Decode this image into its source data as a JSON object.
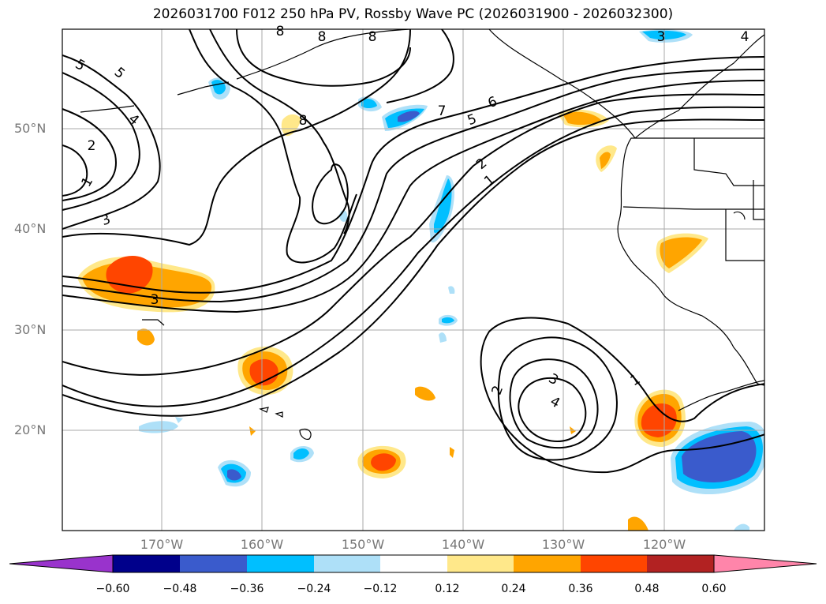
{
  "title": "2026031700 F012 250 hPa PV, Rossby Wave PC (2026031900 - 2026032300)",
  "axes": {
    "lat_labels": [
      "50°N",
      "40°N",
      "30°N",
      "20°N"
    ],
    "lon_labels": [
      "170°W",
      "160°W",
      "150°W",
      "140°W",
      "130°W",
      "120°W"
    ]
  },
  "colorbar": {
    "ticks": [
      "−0.60",
      "−0.48",
      "−0.36",
      "−0.24",
      "−0.12",
      "0.12",
      "0.24",
      "0.36",
      "0.48",
      "0.60"
    ],
    "colors": [
      "#9933cc",
      "#00008b",
      "#3a5bcc",
      "#00bfff",
      "#aee0f8",
      "#ffffff",
      "#ffe88a",
      "#ffa500",
      "#ff4500",
      "#b22222",
      "#ff85aa"
    ]
  },
  "contour_labels": [
    "5",
    "5",
    "4",
    "2",
    "1",
    "3",
    "3",
    "8",
    "8",
    "8",
    "8",
    "7",
    "6",
    "5",
    "2",
    "1",
    "4",
    "3",
    "2",
    "4",
    "1",
    "3"
  ],
  "colors": {
    "positive_weak": "#ffe88a",
    "positive_mid": "#ffa500",
    "positive_strong": "#ff4500",
    "negative_weak": "#aee0f8",
    "negative_mid": "#00bfff",
    "negative_strong": "#3a5bcc",
    "contour": "#000000",
    "grid": "#aaaaaa",
    "coast": "#000000"
  }
}
